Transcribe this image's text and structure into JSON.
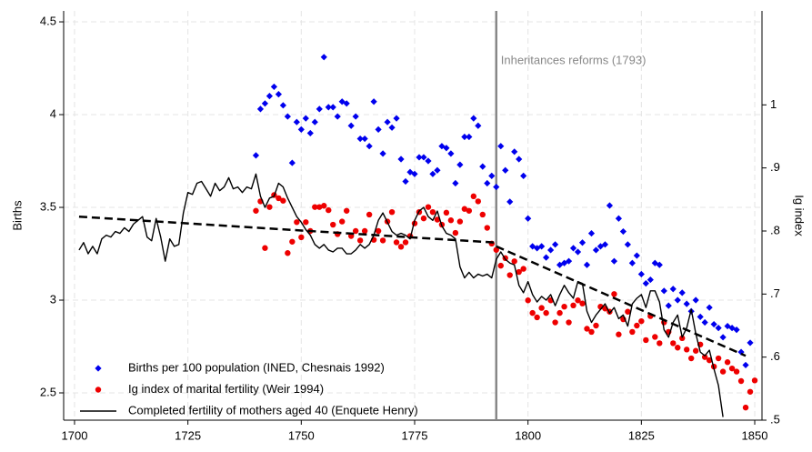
{
  "chart_data": {
    "type": "scatter",
    "xlim": [
      1697.6,
      1851.6
    ],
    "xticks": [
      1700,
      1725,
      1750,
      1775,
      1800,
      1825,
      1850
    ],
    "ylim": [
      2.353,
      4.559
    ],
    "yticks": [
      2.5,
      3,
      3.5,
      4,
      4.5
    ],
    "ylabel": "Births",
    "y2lim": [
      0.5,
      1.149
    ],
    "y2ticks": [
      {
        "value": 0.5,
        "label": ".5"
      },
      {
        "value": 0.6,
        "label": ".6"
      },
      {
        "value": 0.7,
        "label": ".7"
      },
      {
        "value": 0.8,
        "label": ".8"
      },
      {
        "value": 0.9,
        "label": ".9"
      },
      1
    ],
    "y2label": "Ig index",
    "grid": true,
    "legend": "lower left",
    "vline": {
      "x": 1793,
      "label": "Inheritances reforms (1793)",
      "color": "#888888"
    },
    "series": [
      {
        "name": "Births per 100 population (INED, Chesnais 1992)",
        "color": "#0000ee",
        "mark": "diamond",
        "x": [
          1740,
          1741,
          1742,
          1743,
          1744,
          1745,
          1746,
          1747,
          1748,
          1749,
          1750,
          1751,
          1752,
          1753,
          1754,
          1755,
          1756,
          1757,
          1758,
          1759,
          1760,
          1761,
          1762,
          1763,
          1764,
          1765,
          1766,
          1767,
          1768,
          1769,
          1770,
          1771,
          1772,
          1773,
          1774,
          1775,
          1776,
          1777,
          1778,
          1779,
          1780,
          1781,
          1782,
          1783,
          1784,
          1785,
          1786,
          1787,
          1788,
          1789,
          1790,
          1791,
          1792,
          1793,
          1794,
          1795,
          1796,
          1797,
          1798,
          1799,
          1800,
          1801,
          1802,
          1803,
          1804,
          1805,
          1806,
          1807,
          1808,
          1809,
          1810,
          1811,
          1812,
          1813,
          1814,
          1815,
          1816,
          1817,
          1818,
          1819,
          1820,
          1821,
          1822,
          1823,
          1824,
          1825,
          1826,
          1827,
          1828,
          1829,
          1830,
          1831,
          1832,
          1833,
          1834,
          1835,
          1836,
          1837,
          1838,
          1839,
          1840,
          1841,
          1842,
          1843,
          1844,
          1845,
          1846,
          1847,
          1848,
          1849
        ],
        "values": [
          3.78,
          4.03,
          4.06,
          4.1,
          4.15,
          4.11,
          4.05,
          3.99,
          3.74,
          3.96,
          3.92,
          3.98,
          3.9,
          3.96,
          4.03,
          4.31,
          4.04,
          4.04,
          3.99,
          4.07,
          4.06,
          3.94,
          3.99,
          3.87,
          3.87,
          3.83,
          4.07,
          3.92,
          3.79,
          3.96,
          3.93,
          3.98,
          3.76,
          3.64,
          3.69,
          3.68,
          3.77,
          3.77,
          3.75,
          3.68,
          3.7,
          3.83,
          3.82,
          3.79,
          3.63,
          3.73,
          3.88,
          3.88,
          3.98,
          3.94,
          3.72,
          3.63,
          3.67,
          3.61,
          3.83,
          3.7,
          3.53,
          3.8,
          3.76,
          3.67,
          3.44,
          3.29,
          3.28,
          3.29,
          3.23,
          3.27,
          3.3,
          3.19,
          3.2,
          3.21,
          3.28,
          3.26,
          3.31,
          3.19,
          3.36,
          3.27,
          3.29,
          3.3,
          3.51,
          3.21,
          3.44,
          3.37,
          3.3,
          3.2,
          3.24,
          3.14,
          3.09,
          3.11,
          3.2,
          3.19,
          3.05,
          2.97,
          3.06,
          3.0,
          3.04,
          2.98,
          2.94,
          3.0,
          2.91,
          2.88,
          2.96,
          2.87,
          2.85,
          2.8,
          2.86,
          2.85,
          2.84,
          2.72,
          2.65,
          2.77
        ]
      },
      {
        "name": "Ig index of marital fertility (Weir 1994)",
        "color": "#ee0000",
        "mark": "circle",
        "axis": "y2",
        "x": [
          1740,
          1741,
          1742,
          1743,
          1744,
          1745,
          1746,
          1747,
          1748,
          1749,
          1750,
          1751,
          1752,
          1753,
          1754,
          1755,
          1756,
          1757,
          1758,
          1759,
          1760,
          1761,
          1762,
          1763,
          1764,
          1765,
          1766,
          1767,
          1768,
          1769,
          1770,
          1771,
          1772,
          1773,
          1774,
          1775,
          1776,
          1777,
          1778,
          1779,
          1780,
          1781,
          1782,
          1783,
          1784,
          1785,
          1786,
          1787,
          1788,
          1789,
          1790,
          1791,
          1792,
          1793,
          1794,
          1795,
          1796,
          1797,
          1798,
          1799,
          1800,
          1801,
          1802,
          1803,
          1804,
          1805,
          1806,
          1807,
          1808,
          1809,
          1810,
          1811,
          1812,
          1813,
          1814,
          1815,
          1816,
          1817,
          1818,
          1819,
          1820,
          1821,
          1822,
          1823,
          1824,
          1825,
          1826,
          1827,
          1828,
          1829,
          1830,
          1831,
          1832,
          1833,
          1834,
          1835,
          1836,
          1837,
          1838,
          1839,
          1840,
          1841,
          1842,
          1843,
          1844,
          1845,
          1846,
          1847,
          1848,
          1849,
          1850
        ],
        "values": [
          0.832,
          0.847,
          0.773,
          0.838,
          0.857,
          0.852,
          0.848,
          0.765,
          0.783,
          0.814,
          0.79,
          0.814,
          0.8,
          0.838,
          0.838,
          0.84,
          0.833,
          0.81,
          0.795,
          0.815,
          0.832,
          0.792,
          0.8,
          0.785,
          0.8,
          0.826,
          0.786,
          0.8,
          0.785,
          0.815,
          0.83,
          0.782,
          0.775,
          0.782,
          0.792,
          0.812,
          0.83,
          0.82,
          0.838,
          0.83,
          0.818,
          0.81,
          0.829,
          0.817,
          0.797,
          0.815,
          0.835,
          0.832,
          0.855,
          0.847,
          0.826,
          0.805,
          0.78,
          0.77,
          0.745,
          0.757,
          0.73,
          0.752,
          0.735,
          0.74,
          0.69,
          0.67,
          0.663,
          0.678,
          0.67,
          0.69,
          0.655,
          0.67,
          0.68,
          0.655,
          0.682,
          0.69,
          0.685,
          0.645,
          0.64,
          0.65,
          0.68,
          0.677,
          0.672,
          0.7,
          0.636,
          0.66,
          0.672,
          0.64,
          0.65,
          0.657,
          0.627,
          0.665,
          0.632,
          0.622,
          0.655,
          0.64,
          0.622,
          0.615,
          0.63,
          0.612,
          0.598,
          0.61,
          0.62,
          0.6,
          0.595,
          0.585,
          0.598,
          0.577,
          0.592,
          0.582,
          0.577,
          0.562,
          0.52,
          0.545,
          0.563
        ]
      },
      {
        "name": "Completed fertility of mothers aged 40 (Enquete Henry)",
        "color": "#000000",
        "mark": "line",
        "x": [
          1701,
          1702,
          1703,
          1704,
          1705,
          1706,
          1707,
          1708,
          1709,
          1710,
          1711,
          1712,
          1713,
          1714,
          1715,
          1716,
          1717,
          1718,
          1719,
          1720,
          1721,
          1722,
          1723,
          1724,
          1725,
          1726,
          1727,
          1728,
          1729,
          1730,
          1731,
          1732,
          1733,
          1734,
          1735,
          1736,
          1737,
          1738,
          1739,
          1740,
          1741,
          1742,
          1743,
          1744,
          1745,
          1746,
          1747,
          1748,
          1749,
          1750,
          1751,
          1752,
          1753,
          1754,
          1755,
          1756,
          1757,
          1758,
          1759,
          1760,
          1761,
          1762,
          1763,
          1764,
          1765,
          1766,
          1767,
          1768,
          1769,
          1770,
          1771,
          1772,
          1773,
          1774,
          1775,
          1776,
          1777,
          1778,
          1779,
          1780,
          1781,
          1782,
          1783,
          1784,
          1785,
          1786,
          1787,
          1788,
          1789,
          1790,
          1791,
          1792,
          1793,
          1794,
          1795,
          1796,
          1797,
          1798,
          1799,
          1800,
          1801,
          1802,
          1803,
          1804,
          1805,
          1806,
          1807,
          1808,
          1809,
          1810,
          1811,
          1812,
          1813,
          1814,
          1815,
          1816,
          1817,
          1818,
          1819,
          1820,
          1821,
          1822,
          1823,
          1824,
          1825,
          1826,
          1827,
          1828,
          1829,
          1830,
          1831,
          1832,
          1833,
          1834,
          1835,
          1836,
          1837,
          1838,
          1839,
          1840,
          1841,
          1842,
          1843
        ],
        "values": [
          3.27,
          3.31,
          3.25,
          3.29,
          3.25,
          3.33,
          3.35,
          3.34,
          3.37,
          3.36,
          3.39,
          3.37,
          3.41,
          3.43,
          3.45,
          3.34,
          3.32,
          3.44,
          3.34,
          3.21,
          3.33,
          3.29,
          3.3,
          3.47,
          3.58,
          3.57,
          3.63,
          3.64,
          3.6,
          3.56,
          3.63,
          3.59,
          3.61,
          3.66,
          3.6,
          3.61,
          3.58,
          3.61,
          3.6,
          3.68,
          3.56,
          3.5,
          3.55,
          3.56,
          3.63,
          3.61,
          3.55,
          3.5,
          3.45,
          3.42,
          3.38,
          3.35,
          3.3,
          3.28,
          3.3,
          3.27,
          3.26,
          3.28,
          3.28,
          3.25,
          3.25,
          3.27,
          3.3,
          3.28,
          3.3,
          3.35,
          3.43,
          3.47,
          3.42,
          3.37,
          3.35,
          3.36,
          3.35,
          3.33,
          3.43,
          3.48,
          3.5,
          3.45,
          3.43,
          3.48,
          3.4,
          3.36,
          3.35,
          3.33,
          3.18,
          3.12,
          3.15,
          3.12,
          3.14,
          3.13,
          3.14,
          3.12,
          3.22,
          3.26,
          3.22,
          3.2,
          3.19,
          3.08,
          3.04,
          3.1,
          3.03,
          2.99,
          3.02,
          3.0,
          3.03,
          2.97,
          3.03,
          3.08,
          3.04,
          3.01,
          3.1,
          3.09,
          2.94,
          2.88,
          2.92,
          2.95,
          2.98,
          2.93,
          2.96,
          2.9,
          2.92,
          2.86,
          2.98,
          3.01,
          3.03,
          2.96,
          3.05,
          3.05,
          2.99,
          2.84,
          2.8,
          2.88,
          2.92,
          2.8,
          2.85,
          2.95,
          2.82,
          2.72,
          2.7,
          2.73,
          2.63,
          2.54,
          2.37
        ]
      },
      {
        "color": "#000000",
        "mark": "dashed",
        "x": [
          1701,
          1793
        ],
        "values": [
          3.45,
          3.31
        ]
      },
      {
        "color": "#000000",
        "mark": "dashed",
        "x": [
          1793,
          1848
        ],
        "values": [
          3.29,
          2.7
        ]
      }
    ]
  }
}
